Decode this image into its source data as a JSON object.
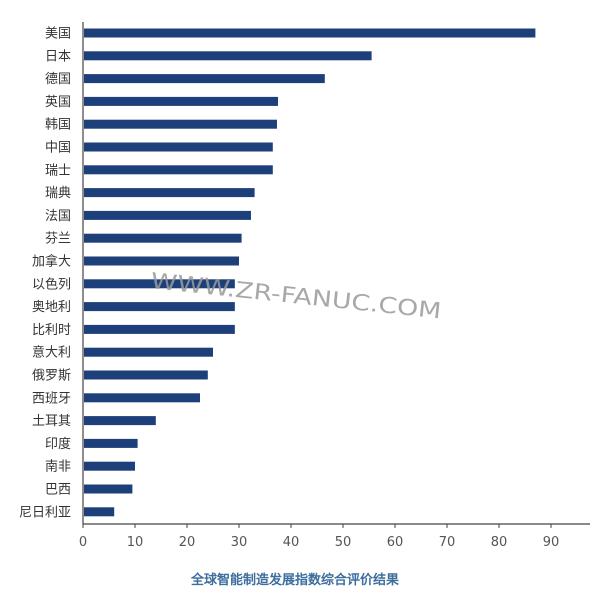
{
  "chart_data": {
    "type": "bar",
    "orientation": "horizontal",
    "categories": [
      "美国",
      "日本",
      "德国",
      "英国",
      "韩国",
      "中国",
      "瑞士",
      "瑞典",
      "法国",
      "芬兰",
      "加拿大",
      "以色列",
      "奥地利",
      "比利时",
      "意大利",
      "俄罗斯",
      "西班牙",
      "土耳其",
      "印度",
      "南非",
      "巴西",
      "尼日利亚"
    ],
    "values": [
      87,
      55.5,
      46.5,
      37.5,
      37.3,
      36.5,
      36.5,
      33,
      32.3,
      30.5,
      30,
      29.2,
      29.2,
      29.2,
      25,
      24,
      22.5,
      14,
      10.5,
      10,
      9.5,
      6
    ],
    "xticks": [
      "0",
      "10",
      "20",
      "30",
      "40",
      "50",
      "60",
      "70",
      "80",
      "90"
    ],
    "xlim": [
      0,
      95
    ],
    "caption": "全球智能制造发展指数综合评价结果",
    "watermark": "WWW.ZR-FANUC.COM",
    "grid": false,
    "colors": {
      "bar": "#1d3f7a",
      "caption": "#3d6e9e",
      "axis": "#444444"
    }
  }
}
